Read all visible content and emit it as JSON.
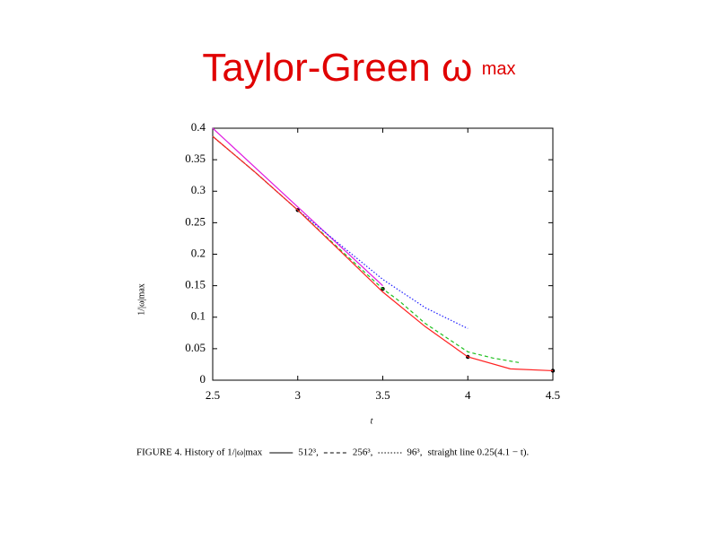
{
  "chart_data": {
    "type": "line",
    "title": "Taylor-Green ω",
    "title_subscript": "max",
    "x_label": "t",
    "y_label": "1/|ω|max",
    "caption": "FIGURE 4. History of 1/|ω|max",
    "xlim": [
      2.5,
      4.5
    ],
    "ylim": [
      0,
      0.4
    ],
    "xticks": [
      2.5,
      3,
      3.5,
      4,
      4.5
    ],
    "yticks": [
      0,
      0.05,
      0.1,
      0.15,
      0.2,
      0.25,
      0.3,
      0.35,
      0.4
    ],
    "grid": false,
    "series": [
      {
        "name": "512³,",
        "color": "#ff2020",
        "style": "solid",
        "x": [
          2.5,
          2.75,
          3,
          3.25,
          3.5,
          3.75,
          4,
          4.25,
          4.5
        ],
        "values": [
          0.387,
          0.33,
          0.27,
          0.205,
          0.14,
          0.085,
          0.037,
          0.018,
          0.015
        ]
      },
      {
        "name": "256³,",
        "color": "#20c020",
        "style": "dashed",
        "x": [
          2.5,
          2.75,
          3,
          3.25,
          3.5,
          3.6,
          3.75,
          4,
          4.15,
          4.3
        ],
        "values": [
          0.387,
          0.33,
          0.27,
          0.207,
          0.145,
          0.125,
          0.09,
          0.045,
          0.035,
          0.028
        ]
      },
      {
        "name": "96³,",
        "color": "#2020ff",
        "style": "dotted",
        "x": [
          2.5,
          2.75,
          3,
          3.25,
          3.5,
          3.75,
          4
        ],
        "values": [
          0.387,
          0.33,
          0.27,
          0.215,
          0.16,
          0.115,
          0.082
        ]
      },
      {
        "name": "straight line 0.25(4.1 − t).",
        "color": "#e020e0",
        "style": "solid",
        "legend_sample": false,
        "x": [
          2.5,
          3.5
        ],
        "values": [
          0.4,
          0.15
        ]
      },
      {
        "color": "#000000",
        "style": "dot",
        "x": [
          3,
          3.5,
          4,
          4.5
        ],
        "values": [
          0.27,
          0.145,
          0.037,
          0.015
        ]
      }
    ]
  }
}
